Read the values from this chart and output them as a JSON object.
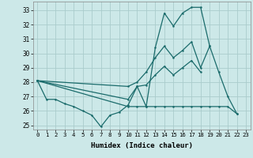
{
  "xlabel": "Humidex (Indice chaleur)",
  "xlim": [
    -0.5,
    23.5
  ],
  "ylim": [
    24.7,
    33.6
  ],
  "yticks": [
    25,
    26,
    27,
    28,
    29,
    30,
    31,
    32,
    33
  ],
  "xticks": [
    0,
    1,
    2,
    3,
    4,
    5,
    6,
    7,
    8,
    9,
    10,
    11,
    12,
    13,
    14,
    15,
    16,
    17,
    18,
    19,
    20,
    21,
    22,
    23
  ],
  "bg_color": "#cce8e8",
  "grid_color": "#aacccc",
  "line_color": "#1a6b6b",
  "series": [
    {
      "x": [
        0,
        1,
        2,
        3,
        4,
        5,
        6,
        7,
        8,
        9,
        10,
        11,
        12,
        13,
        14,
        15,
        16,
        17,
        18,
        19,
        20,
        21,
        22
      ],
      "y": [
        28.1,
        26.8,
        26.8,
        26.5,
        26.3,
        26.0,
        25.7,
        24.9,
        25.7,
        25.9,
        26.4,
        27.7,
        26.3,
        30.4,
        32.8,
        31.9,
        32.8,
        33.2,
        33.2,
        30.5,
        28.7,
        27.0,
        25.8
      ]
    },
    {
      "x": [
        0,
        10,
        11,
        12,
        13,
        14,
        15,
        16,
        17,
        18,
        19,
        20,
        21,
        22
      ],
      "y": [
        28.1,
        26.3,
        26.3,
        26.3,
        26.3,
        26.3,
        26.3,
        26.3,
        26.3,
        26.3,
        26.3,
        26.3,
        26.3,
        25.8
      ]
    },
    {
      "x": [
        0,
        10,
        11,
        12,
        13,
        14,
        15,
        16,
        17,
        18,
        19
      ],
      "y": [
        28.1,
        27.7,
        28.0,
        28.7,
        29.7,
        30.5,
        29.7,
        30.2,
        30.8,
        29.0,
        30.5
      ]
    },
    {
      "x": [
        0,
        10,
        11,
        12,
        13,
        14,
        15,
        16,
        17,
        18
      ],
      "y": [
        28.1,
        26.8,
        27.7,
        27.8,
        28.5,
        29.1,
        28.5,
        29.0,
        29.5,
        28.7
      ]
    }
  ]
}
